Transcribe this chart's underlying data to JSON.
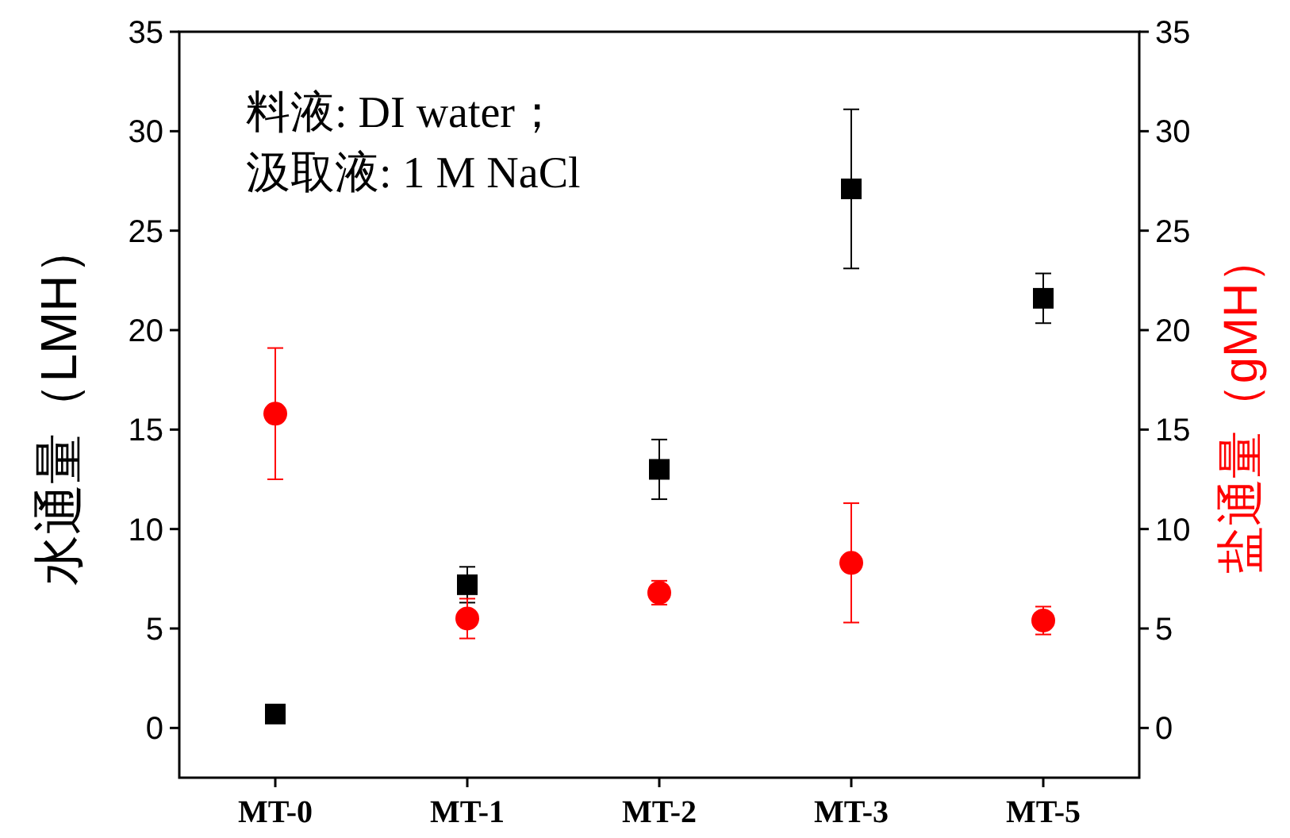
{
  "chart_data": {
    "type": "scatter",
    "ylabel": "水通量（LMH）",
    "y2label": "盐通量（gMH）",
    "annotations": [
      "料液: DI water；",
      "汲取液: 1 M NaCl"
    ],
    "categories": [
      "MT-0",
      "MT-1",
      "MT-2",
      "MT-3",
      "MT-5"
    ],
    "ylim": [
      -2.5,
      35
    ],
    "yticks": [
      0,
      5,
      10,
      15,
      20,
      25,
      30,
      35
    ],
    "y2lim": [
      -2.5,
      35
    ],
    "y2ticks": [
      0,
      5,
      10,
      15,
      20,
      25,
      30,
      35
    ],
    "series": [
      {
        "color": "#000000",
        "marker": "square",
        "axis": "y",
        "values": [
          0.7,
          7.2,
          13.0,
          27.1,
          21.6
        ],
        "errors": [
          null,
          0.9,
          1.5,
          4.0,
          1.25
        ]
      },
      {
        "color": "#ff0000",
        "marker": "circle",
        "axis": "y2",
        "values": [
          15.8,
          5.5,
          6.8,
          8.3,
          5.4
        ],
        "errors": [
          3.3,
          1.0,
          0.6,
          3.0,
          0.7
        ]
      }
    ]
  }
}
